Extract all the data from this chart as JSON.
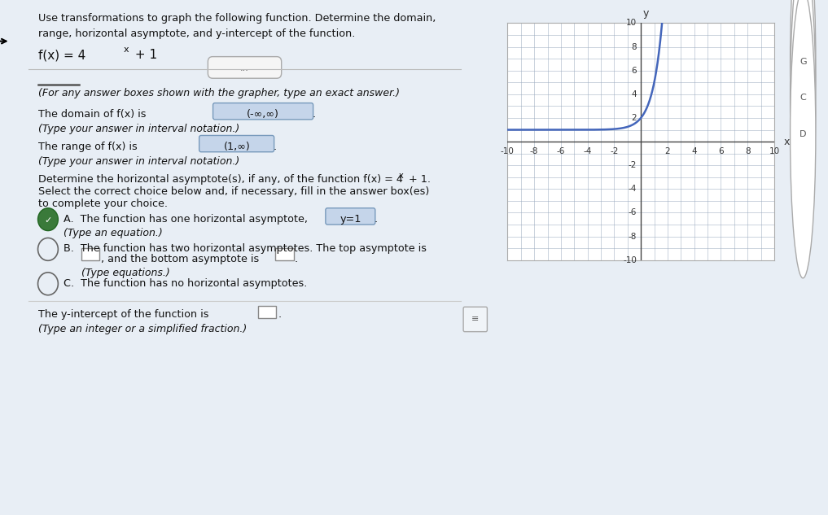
{
  "title_text": "Use transformations to graph the following function. Determine the domain,\nrange, horizontal asymptote, and y-intercept of the function.",
  "note_text": "(For any answer boxes shown with the grapher, type an exact answer.)",
  "domain_value": "(-∞,∞)",
  "domain_note": "(Type your answer in interval notation.)",
  "range_value": "(1,∞)",
  "range_note": "(Type your answer in interval notation.)",
  "choice_A_value": "y=1",
  "yintercept_note": "(Type an integer or a simplified fraction.)",
  "bg_color": "#e8eef5",
  "left_panel_bg": "#ffffff",
  "right_panel_bg": "#dde6f0",
  "graph_bg": "#ffffff",
  "grid_color": "#9aaabf",
  "curve_color": "#4466bb",
  "highlight_bg": "#c5d5ea",
  "highlight_border": "#7799bb",
  "selected_fill": "#3a7a3a",
  "text_color": "#111111",
  "text_color2": "#333333",
  "xmin": -10,
  "xmax": 10,
  "ymin": -10,
  "ymax": 10
}
